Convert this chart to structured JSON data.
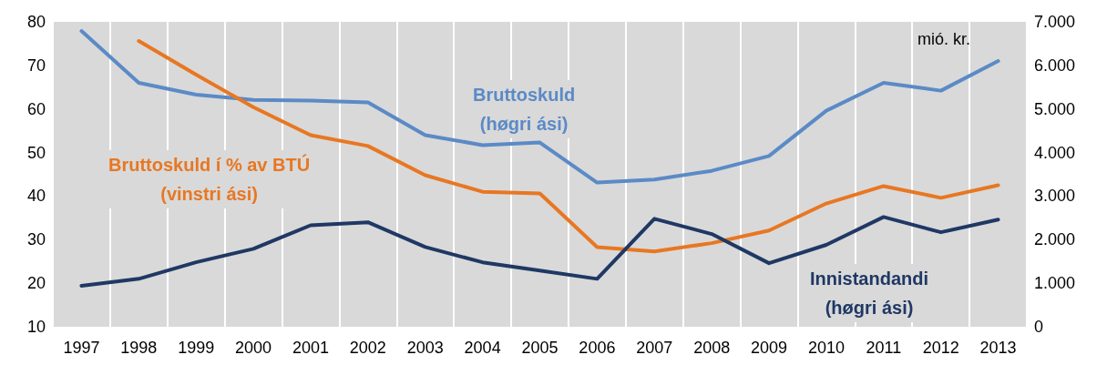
{
  "chart_data": {
    "type": "line",
    "y2label": "mió. kr.",
    "categories": [
      "1997",
      "1998",
      "1999",
      "2000",
      "2001",
      "2002",
      "2003",
      "2004",
      "2005",
      "2006",
      "2007",
      "2008",
      "2009",
      "2010",
      "2011",
      "2012",
      "2013"
    ],
    "series": [
      {
        "name": "Bruttoskuld (høgri ási)",
        "color": "#5b8ac6",
        "axis": "y2",
        "values": [
          6790,
          5600,
          5330,
          5210,
          5190,
          5150,
          4400,
          4170,
          4230,
          3310,
          3380,
          3580,
          3920,
          4960,
          5600,
          5420,
          6100
        ]
      },
      {
        "name": "Bruttoskuld í % av BTÚ (vinstri ási)",
        "color": "#e87722",
        "axis": "y",
        "values": [
          null,
          75.6,
          67.9,
          60.4,
          54.0,
          51.5,
          44.8,
          41.0,
          40.6,
          28.3,
          27.3,
          29.2,
          32.1,
          38.3,
          42.3,
          39.6,
          42.5
        ]
      },
      {
        "name": "Innistandandi (høgri ási)",
        "color": "#1f3864",
        "axis": "y2",
        "values": [
          940,
          1100,
          1480,
          1790,
          2330,
          2400,
          1830,
          1480,
          1290,
          1100,
          2480,
          2130,
          1460,
          1880,
          2520,
          2170,
          2460
        ]
      }
    ],
    "ylim": [
      10,
      80
    ],
    "yticks": [
      10,
      20,
      30,
      40,
      50,
      60,
      70,
      80
    ],
    "y2lim": [
      0,
      7000
    ],
    "y2ticks": [
      {
        "value": 0,
        "label": "0"
      },
      {
        "value": 1000,
        "label": "1.000"
      },
      {
        "value": 2000,
        "label": "2.000"
      },
      {
        "value": 3000,
        "label": "3.000"
      },
      {
        "value": 4000,
        "label": "4.000"
      },
      {
        "value": 5000,
        "label": "5.000"
      },
      {
        "value": 6000,
        "label": "6.000"
      },
      {
        "value": 7000,
        "label": "7.000"
      }
    ],
    "grid": "x",
    "marker": "none",
    "line_style": "solid",
    "legend": false
  }
}
